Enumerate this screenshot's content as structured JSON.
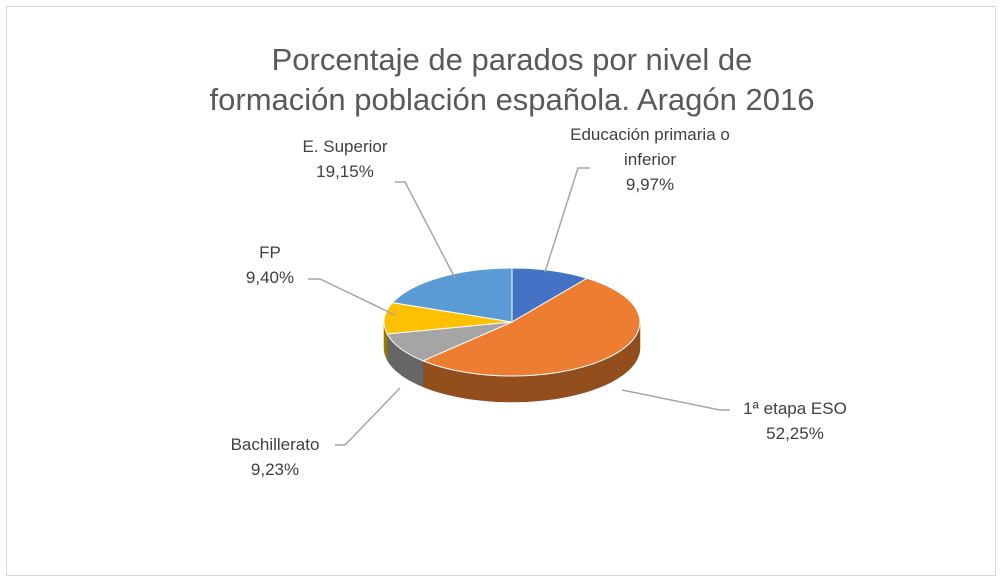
{
  "chart_data": {
    "type": "pie",
    "title": "Porcentaje de parados por nivel de formación población española. Aragón 2016",
    "categories": [
      "Educación primaria o inferior",
      "1ª etapa ESO",
      "Bachillerato",
      "FP",
      "E. Superior"
    ],
    "values": [
      9.97,
      52.25,
      9.23,
      9.4,
      19.15
    ],
    "value_labels": [
      "9,97%",
      "52,25%",
      "9,23%",
      "9,40%",
      "19,15%"
    ],
    "colors": [
      "#4472c4",
      "#ed7d31",
      "#a5a5a5",
      "#ffc000",
      "#5b9bd5"
    ]
  }
}
